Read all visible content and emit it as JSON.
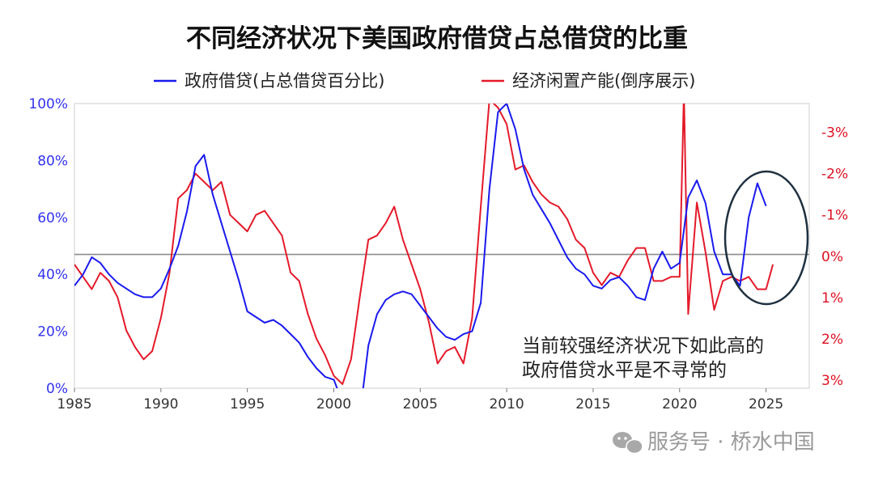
{
  "chart_data": {
    "type": "line",
    "title": "不同经济状况下美国政府借贷占总借贷的比重",
    "x_ticks": [
      "1985",
      "1990",
      "1995",
      "2000",
      "2005",
      "2010",
      "2015",
      "2020",
      "2025"
    ],
    "y_left_ticks": [
      "0%",
      "20%",
      "40%",
      "60%",
      "80%",
      "100%"
    ],
    "y_right_ticks": [
      "3%",
      "2%",
      "1%",
      "0%",
      "-1%",
      "-2%",
      "-3%"
    ],
    "xlim": [
      1985,
      2027.5
    ],
    "ylim_left": [
      0,
      100
    ],
    "ylim_right": [
      3.2,
      -3.7
    ],
    "series": [
      {
        "name": "政府借贷(占总借贷百分比)",
        "axis": "left",
        "color": "#1a1aee",
        "x": [
          1985.0,
          1985.5,
          1986.0,
          1986.5,
          1987.0,
          1987.5,
          1988.0,
          1988.5,
          1989.0,
          1989.5,
          1990.0,
          1990.5,
          1991.0,
          1991.5,
          1992.0,
          1992.5,
          1993.0,
          1993.5,
          1994.0,
          1994.5,
          1995.0,
          1995.5,
          1996.0,
          1996.5,
          1997.0,
          1997.5,
          1998.0,
          1998.5,
          1999.0,
          1999.5,
          2000.0,
          2000.5,
          2001.0,
          2001.5,
          2002.0,
          2002.5,
          2003.0,
          2003.5,
          2004.0,
          2004.5,
          2005.0,
          2005.5,
          2006.0,
          2006.5,
          2007.0,
          2007.5,
          2008.0,
          2008.5,
          2009.0,
          2009.5,
          2010.0,
          2010.5,
          2011.0,
          2011.5,
          2012.0,
          2012.5,
          2013.0,
          2013.5,
          2014.0,
          2014.5,
          2015.0,
          2015.5,
          2016.0,
          2016.5,
          2017.0,
          2017.5,
          2018.0,
          2018.5,
          2019.0,
          2019.5,
          2020.0,
          2020.5,
          2021.0,
          2021.5,
          2022.0,
          2022.5,
          2023.0,
          2023.5,
          2024.0,
          2024.5,
          2025.0
        ],
        "values": [
          36,
          40,
          46,
          44,
          40,
          37,
          35,
          33,
          32,
          32,
          35,
          42,
          50,
          62,
          78,
          82,
          68,
          58,
          48,
          38,
          27,
          25,
          23,
          24,
          22,
          19,
          16,
          11,
          7,
          4,
          3,
          -5,
          -8,
          -10,
          15,
          26,
          31,
          33,
          34,
          33,
          29,
          25,
          21,
          18,
          17,
          19,
          20,
          30,
          70,
          97,
          100,
          91,
          77,
          68,
          63,
          58,
          52,
          46,
          42,
          40,
          36,
          35,
          38,
          39,
          36,
          32,
          31,
          42,
          48,
          42,
          44,
          67,
          73,
          65,
          48,
          40,
          40,
          36,
          60,
          72,
          64
        ]
      },
      {
        "name": "经济闲置产能(倒序展示)",
        "axis": "right",
        "color": "#e41a2a",
        "x": [
          1985.0,
          1985.5,
          1986.0,
          1986.5,
          1987.0,
          1987.5,
          1988.0,
          1988.5,
          1989.0,
          1989.5,
          1990.0,
          1990.5,
          1991.0,
          1991.5,
          1992.0,
          1992.5,
          1993.0,
          1993.5,
          1994.0,
          1994.5,
          1995.0,
          1995.5,
          1996.0,
          1996.5,
          1997.0,
          1997.5,
          1998.0,
          1998.5,
          1999.0,
          1999.5,
          2000.0,
          2000.5,
          2001.0,
          2001.5,
          2002.0,
          2002.5,
          2003.0,
          2003.5,
          2004.0,
          2004.5,
          2005.0,
          2005.5,
          2006.0,
          2006.5,
          2007.0,
          2007.5,
          2008.0,
          2008.5,
          2009.0,
          2009.5,
          2010.0,
          2010.5,
          2011.0,
          2011.5,
          2012.0,
          2012.5,
          2013.0,
          2013.5,
          2014.0,
          2014.5,
          2015.0,
          2015.5,
          2016.0,
          2016.5,
          2017.0,
          2017.5,
          2018.0,
          2018.5,
          2019.0,
          2019.5,
          2020.0,
          2020.25,
          2020.5,
          2021.0,
          2021.5,
          2022.0,
          2022.5,
          2023.0,
          2023.5,
          2024.0,
          2024.5,
          2025.0,
          2025.4
        ],
        "values": [
          0.2,
          0.5,
          0.8,
          0.4,
          0.6,
          1.0,
          1.8,
          2.2,
          2.5,
          2.3,
          1.5,
          0.4,
          -1.4,
          -1.6,
          -2.0,
          -1.8,
          -1.6,
          -1.8,
          -1.0,
          -0.8,
          -0.6,
          -1.0,
          -1.1,
          -0.8,
          -0.5,
          0.4,
          0.6,
          1.4,
          2.0,
          2.4,
          2.9,
          3.1,
          2.5,
          1.0,
          -0.4,
          -0.5,
          -0.8,
          -1.2,
          -0.4,
          0.2,
          0.8,
          1.6,
          2.6,
          2.3,
          2.2,
          2.6,
          1.5,
          -1.2,
          -3.8,
          -3.6,
          -3.2,
          -2.1,
          -2.2,
          -1.8,
          -1.5,
          -1.3,
          -1.2,
          -0.9,
          -0.4,
          -0.2,
          0.4,
          0.7,
          0.4,
          0.5,
          0.1,
          -0.2,
          -0.2,
          0.6,
          0.6,
          0.5,
          0.5,
          -4.0,
          1.4,
          -1.3,
          -0.1,
          1.3,
          0.6,
          0.5,
          0.6,
          0.5,
          0.8,
          0.8,
          0.2
        ]
      }
    ],
    "zero_line_left": 47,
    "annotation": [
      "当前较强经济状况下如此高的",
      "政府借贷水平是不寻常的"
    ],
    "highlight": "2023-2025 ellipse"
  },
  "watermark": {
    "icon": "wechat-icon",
    "text": "服务号 · 桥水中国"
  }
}
